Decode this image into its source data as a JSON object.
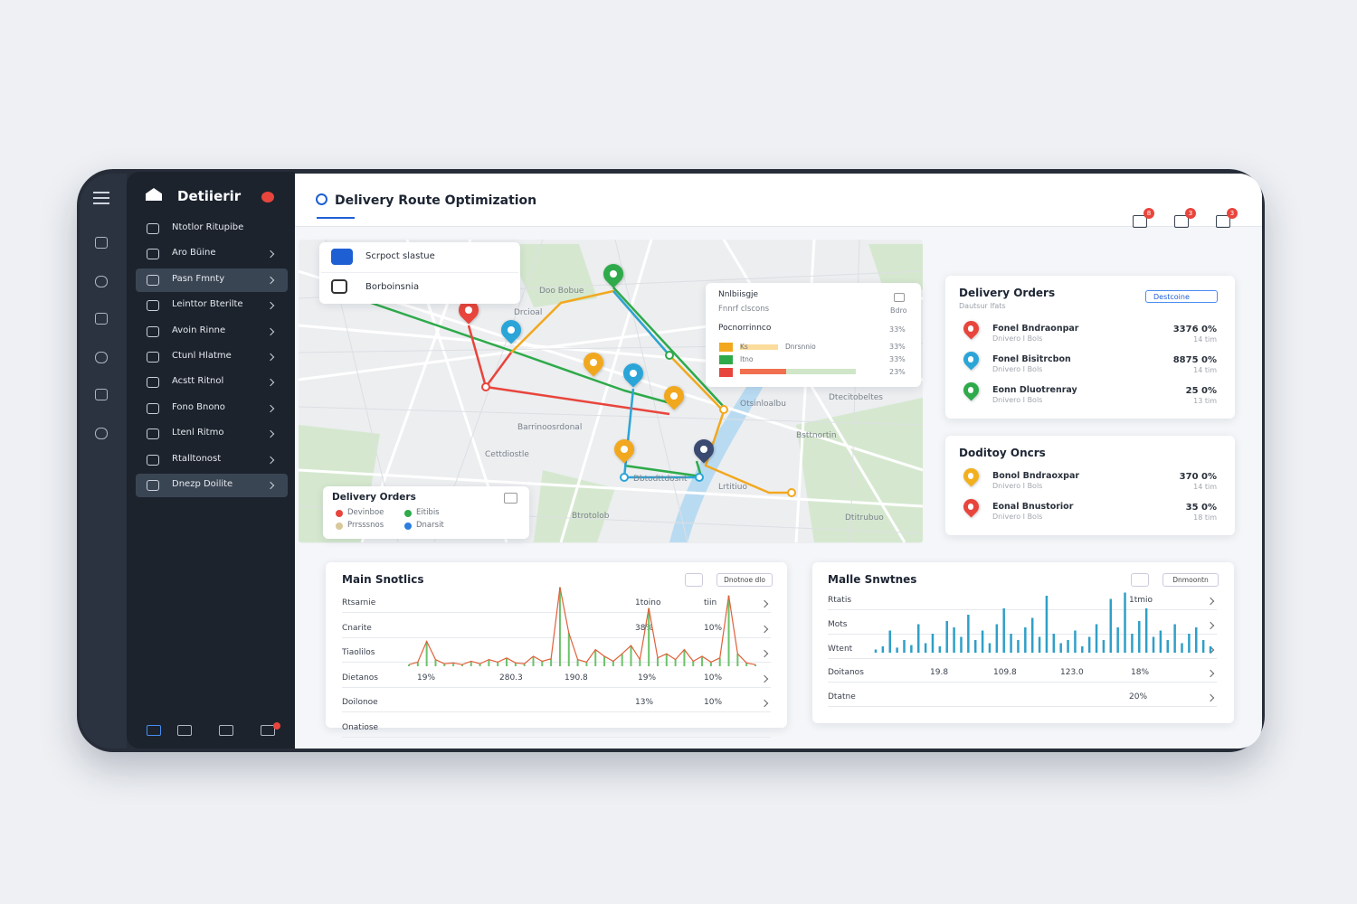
{
  "sidebar": {
    "brand": "Detiierir",
    "items": [
      "Ntotlor Ritupibe",
      "Aro Büine",
      "Pasn Fmnty",
      "Leinttor Bterilte",
      "Avoin Rinne",
      "Ctunl Hlatme",
      "Acstt Ritnol",
      "Fono Bnono",
      "Ltenl Ritmo",
      "Rtalltonost",
      "Dnezp Doilite"
    ]
  },
  "header": {
    "title": "Delivery Route Optimization",
    "badges": [
      "8",
      "3",
      "3"
    ]
  },
  "map": {
    "search": [
      "Scrpoct slastue",
      "Borboinsnia"
    ],
    "labels": [
      "Doo Bobue",
      "Drcioal",
      "Gisstonsrnoa",
      "Cettdiostle",
      "Dtecitobeltes",
      "Otsinloalbu",
      "Barrinoosrdonal",
      "Dbtodttdosnt",
      "Bsttnortin",
      "Lrtitiuo",
      "Btrotolob",
      "Dtitrubuo"
    ],
    "legend": {
      "title": "Delivery Orders",
      "items": [
        "Devinboe",
        "Prrsssnos",
        "Eitibis",
        "Dnarsit"
      ]
    },
    "info": {
      "title": "Nnlbiisgje",
      "subtitle": "Fnnrf clscons",
      "tag": "Bdro",
      "header": "Pocnorrinnco",
      "header_value": "33%",
      "labels": [
        "Ks",
        "Dnrsnnio",
        "Itno"
      ],
      "values": [
        "33%",
        "33%",
        "23%"
      ]
    }
  },
  "orders": {
    "title": "Delivery Orders",
    "subtitle": "Dautsur lfats",
    "button": "Destcoine",
    "items": [
      {
        "name": "Fonel Bndraonpar",
        "sub": "Dnivero I Bols",
        "value": "3376 0%",
        "dist": "14 tim",
        "color": "#e8453c"
      },
      {
        "name": "Fonel Bisitrcbon",
        "sub": "Dnivero I Bols",
        "value": "8875 0%",
        "dist": "14 tim",
        "color": "#2ba5d8"
      },
      {
        "name": "Eonn Dluotrenray",
        "sub": "Dnivero I Bols",
        "value": "25 0%",
        "dist": "13 tim",
        "color": "#2eaa4a"
      }
    ]
  },
  "orders2": {
    "title": "Doditoy Oncrs",
    "items": [
      {
        "name": "Bonol Bndraoxpar",
        "sub": "Dnivero I Bols",
        "value": "370 0%",
        "dist": "14 tim",
        "color": "#f2b01e"
      },
      {
        "name": "Eonal Bnustorior",
        "sub": "Dnivero I Bols",
        "value": "35 0%",
        "dist": "18 tim",
        "color": "#e8453c"
      }
    ]
  },
  "stats1": {
    "title": "Main Snotlics",
    "button": "Dnotnoe dlo",
    "ylim": [
      0,
      100
    ],
    "rows": [
      {
        "label": "Rtsarnie",
        "cells": [
          "1toino",
          "tiin"
        ]
      },
      {
        "label": "Cnarite",
        "cells": [
          "38%",
          "10%"
        ]
      },
      {
        "label": "Tiaolilos"
      },
      {
        "label": "Dietanos",
        "cells": [
          "19%",
          "280.3",
          "190.8",
          "19%",
          "10%"
        ]
      },
      {
        "label": "Doilonoe",
        "cells": [
          "13%",
          "10%"
        ]
      },
      {
        "label": "Onatiose"
      }
    ],
    "spikes": [
      2,
      5,
      30,
      8,
      3,
      4,
      2,
      6,
      3,
      8,
      5,
      10,
      4,
      3,
      12,
      6,
      9,
      95,
      40,
      8,
      5,
      20,
      12,
      6,
      15,
      25,
      8,
      70,
      10,
      15,
      8,
      20,
      6,
      12,
      5,
      10,
      85,
      15,
      4,
      2
    ]
  },
  "stats2": {
    "title": "Malle Snwtnes",
    "button": "Dnmoontn",
    "ylim": [
      0,
      100
    ],
    "rows": [
      {
        "label": "Rtatis",
        "cells": [
          "1tmio"
        ]
      },
      {
        "label": "Mots"
      },
      {
        "label": "Wtent"
      },
      {
        "label": "Doitanos",
        "cells": [
          "19.8",
          "109.8",
          "123.0",
          "18%"
        ]
      },
      {
        "label": "Dtatne",
        "cells": [
          "20%"
        ]
      }
    ],
    "spikes": [
      5,
      10,
      35,
      8,
      20,
      12,
      45,
      15,
      30,
      10,
      50,
      40,
      25,
      60,
      20,
      35,
      15,
      45,
      70,
      30,
      20,
      40,
      55,
      25,
      90,
      30,
      15,
      20,
      35,
      10,
      25,
      45,
      20,
      85,
      40,
      95,
      30,
      50,
      70,
      25,
      35,
      20,
      45,
      15,
      30,
      40,
      20,
      10
    ]
  }
}
